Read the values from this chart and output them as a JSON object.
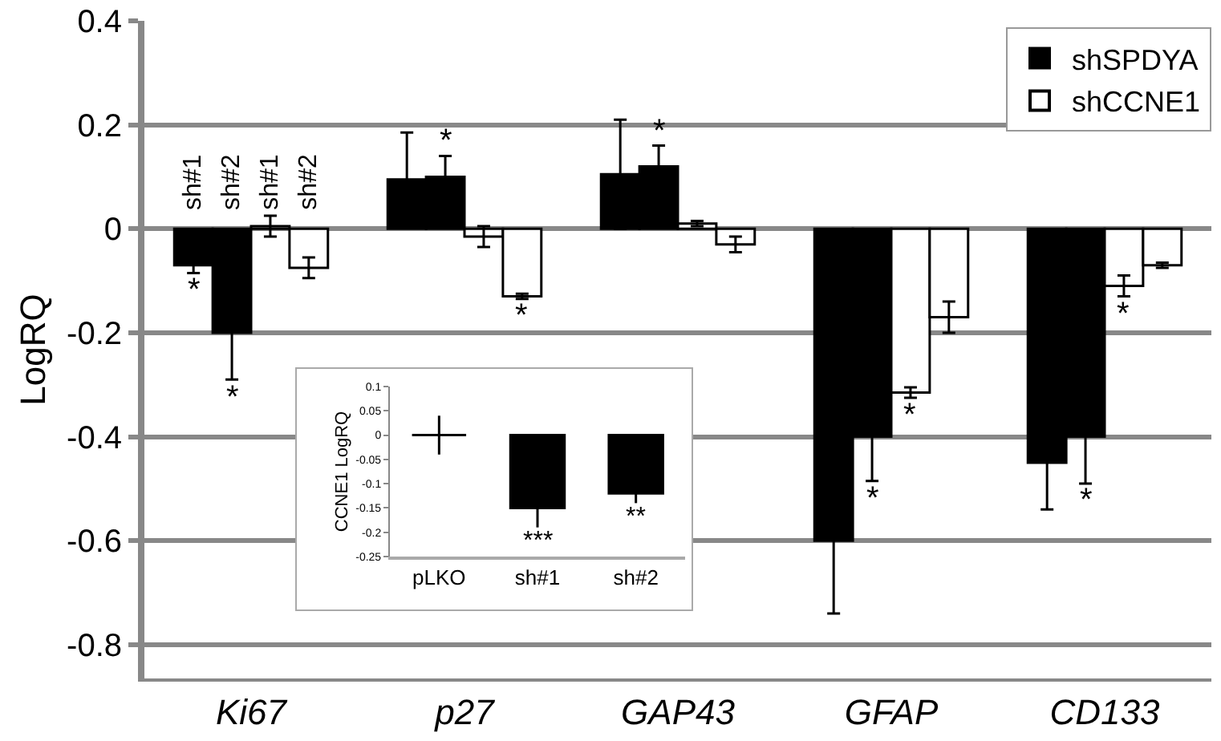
{
  "chart_data": [
    {
      "type": "bar",
      "ylabel": "LogRQ",
      "categories": [
        "Ki67",
        "p27",
        "GAP43",
        "GFAP",
        "CD133"
      ],
      "series": [
        {
          "name": "shSPDYA",
          "color": "#000000",
          "values": [
            -0.07,
            0.095,
            0.105,
            -0.6,
            -0.45
          ],
          "errors": [
            0.015,
            0.09,
            0.105,
            0.14,
            0.09
          ],
          "value_labels": [
            "*",
            null,
            null,
            null,
            null
          ]
        },
        {
          "color": "#000000",
          "values": [
            -0.2,
            0.1,
            0.12,
            -0.4,
            -0.4
          ],
          "errors": [
            0.09,
            0.04,
            0.04,
            0.085,
            0.09
          ],
          "value_labels": [
            "*",
            "*",
            "*",
            "*",
            "*"
          ]
        },
        {
          "name": "shCCNE1",
          "color": "#ffffff",
          "values": [
            0.005,
            -0.015,
            0.01,
            -0.315,
            -0.11
          ],
          "errors": [
            0.02,
            0.02,
            0.005,
            0.01,
            0.02
          ],
          "value_labels": [
            null,
            null,
            null,
            "*",
            "*"
          ]
        },
        {
          "color": "#ffffff",
          "values": [
            -0.075,
            -0.13,
            -0.03,
            -0.17,
            -0.07
          ],
          "errors": [
            0.02,
            0.005,
            0.015,
            0.03,
            0.005
          ],
          "value_labels": [
            null,
            "*",
            null,
            null,
            null
          ]
        }
      ],
      "annotations": [
        "sh#1",
        "sh#2",
        "sh#1",
        "sh#2"
      ],
      "ylim": [
        -0.865,
        0.4
      ],
      "yticks": [
        -0.8,
        -0.6,
        -0.4,
        -0.2,
        0,
        0.2,
        0.4
      ],
      "grid": "y",
      "legend": "top right"
    },
    {
      "type": "bar",
      "ylabel": "CCNE1 LogRQ",
      "categories": [
        "pLKO",
        "sh#1",
        "sh#2"
      ],
      "series": [
        {
          "color": "#000000",
          "values": [
            0,
            -0.15,
            -0.12
          ],
          "errors": [
            0.04,
            0.04,
            0.02
          ],
          "value_labels": [
            null,
            "***",
            "**"
          ]
        }
      ],
      "ylim": [
        -0.25,
        0.1
      ],
      "yticks": [
        -0.25,
        -0.2,
        -0.15,
        -0.1,
        -0.05,
        0,
        0.05,
        0.1
      ],
      "grid": false,
      "legend": false
    }
  ]
}
